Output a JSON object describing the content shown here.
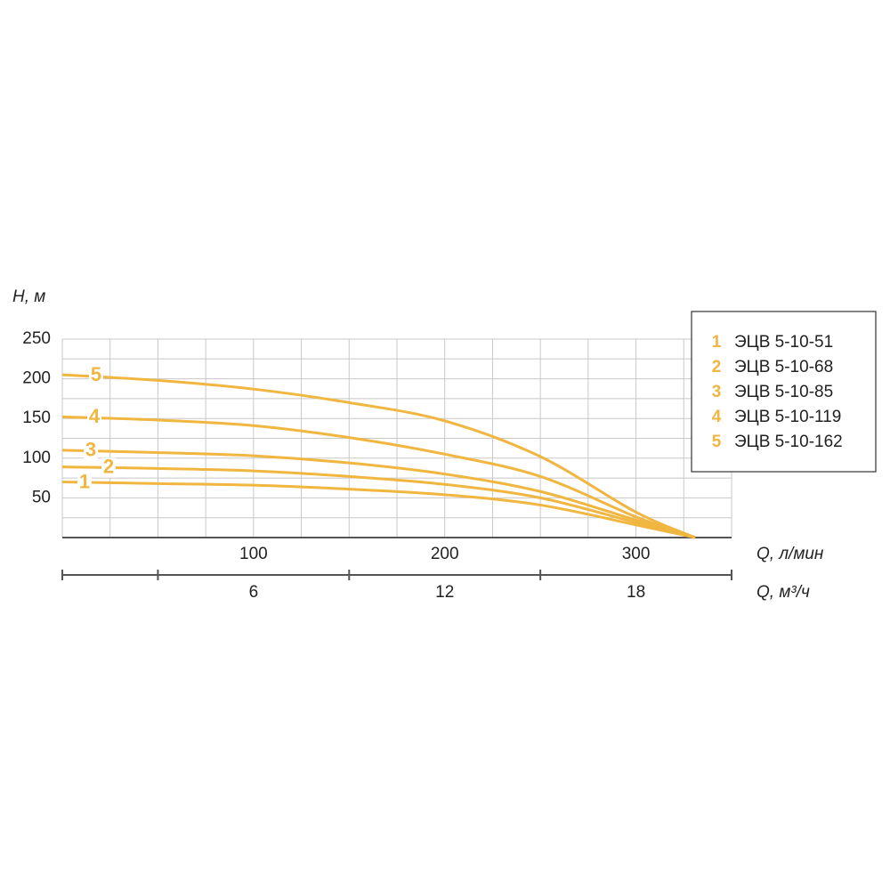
{
  "chart_data": {
    "type": "line",
    "y_label": "H, м",
    "x_label": "Q, л/мин",
    "x2_label": "Q, м³/ч",
    "x": [
      0,
      50,
      100,
      150,
      200,
      250,
      300,
      331
    ],
    "series": [
      {
        "label": "1",
        "name": "ЭЦВ 5-10-51",
        "color": "#f0b640",
        "values": [
          70,
          68,
          66,
          61,
          54,
          41,
          16,
          0
        ]
      },
      {
        "label": "2",
        "name": "ЭЦВ 5-10-68",
        "color": "#f0b640",
        "values": [
          89,
          87,
          84,
          77,
          67,
          50,
          19,
          0
        ]
      },
      {
        "label": "3",
        "name": "ЭЦВ 5-10-85",
        "color": "#f0b640",
        "values": [
          110,
          107,
          103,
          94,
          80,
          58,
          22,
          0
        ]
      },
      {
        "label": "4",
        "name": "ЭЦВ 5-10-119",
        "color": "#f0b640",
        "values": [
          152,
          148,
          141,
          126,
          105,
          77,
          26,
          0
        ]
      },
      {
        "label": "5",
        "name": "ЭЦВ 5-10-162",
        "color": "#f0b640",
        "values": [
          205,
          198,
          187,
          170,
          147,
          102,
          32,
          0
        ]
      }
    ],
    "xlim": [
      0,
      350
    ],
    "xticks": [
      100,
      200,
      300
    ],
    "xgrid": [
      0,
      25,
      50,
      75,
      100,
      125,
      150,
      175,
      200,
      225,
      250,
      275,
      300,
      325,
      350
    ],
    "ylim": [
      0,
      250
    ],
    "yticks": [
      50,
      100,
      150,
      200,
      250
    ],
    "ygrid": [
      25,
      50,
      75,
      100,
      125,
      150,
      175,
      200,
      225,
      250
    ],
    "x2lim": [
      0,
      21
    ],
    "x2ticks": [
      6,
      12,
      18
    ],
    "x2minor": [
      0,
      3,
      9,
      15,
      21
    ],
    "grid": true,
    "legend": "upper right"
  }
}
